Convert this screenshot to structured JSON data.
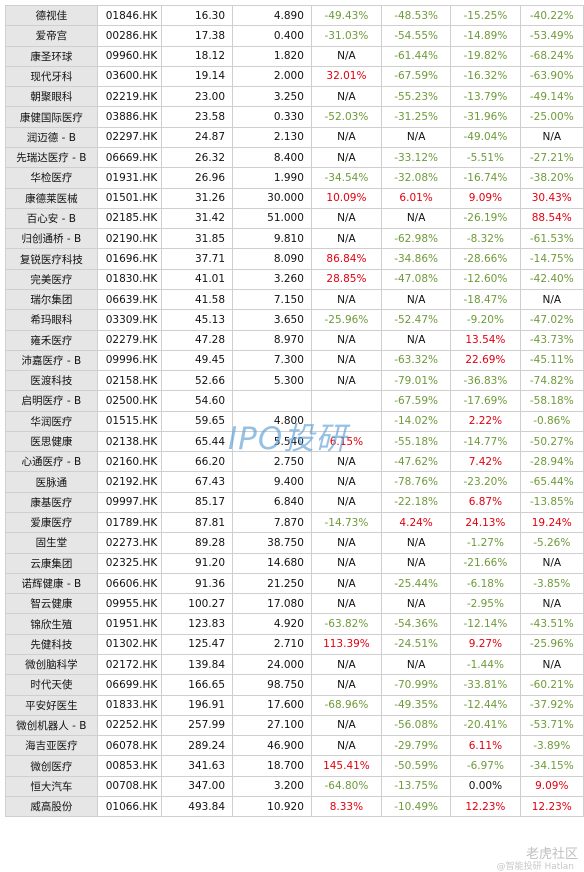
{
  "watermark": {
    "center": "IPO投研",
    "corner": "老虎社区",
    "corner_sub": "@智能投研 Hatlan"
  },
  "rows": [
    {
      "name": "德视佳",
      "code": "01846.HK",
      "price": "16.30",
      "shares": "4.890",
      "p1": "-49.43%",
      "p2": "-48.53%",
      "p3": "-15.25%",
      "p4": "-40.22%"
    },
    {
      "name": "爱帝宫",
      "code": "00286.HK",
      "price": "17.38",
      "shares": "0.400",
      "p1": "-31.03%",
      "p2": "-54.55%",
      "p3": "-14.89%",
      "p4": "-53.49%"
    },
    {
      "name": "康圣环球",
      "code": "09960.HK",
      "price": "18.12",
      "shares": "1.820",
      "p1": "N/A",
      "p2": "-61.44%",
      "p3": "-19.82%",
      "p4": "-68.24%"
    },
    {
      "name": "现代牙科",
      "code": "03600.HK",
      "price": "19.14",
      "shares": "2.000",
      "p1": "32.01%",
      "p2": "-67.59%",
      "p3": "-16.32%",
      "p4": "-63.90%"
    },
    {
      "name": "朝聚眼科",
      "code": "02219.HK",
      "price": "23.00",
      "shares": "3.250",
      "p1": "N/A",
      "p2": "-55.23%",
      "p3": "-13.79%",
      "p4": "-49.14%"
    },
    {
      "name": "康健国际医疗",
      "code": "03886.HK",
      "price": "23.58",
      "shares": "0.330",
      "p1": "-52.03%",
      "p2": "-31.25%",
      "p3": "-31.96%",
      "p4": "-25.00%"
    },
    {
      "name": "润迈德 - B",
      "code": "02297.HK",
      "price": "24.87",
      "shares": "2.130",
      "p1": "N/A",
      "p2": "N/A",
      "p3": "-49.04%",
      "p4": "N/A"
    },
    {
      "name": "先瑞达医疗 - B",
      "code": "06669.HK",
      "price": "26.32",
      "shares": "8.400",
      "p1": "N/A",
      "p2": "-33.12%",
      "p3": "-5.51%",
      "p4": "-27.21%"
    },
    {
      "name": "华检医疗",
      "code": "01931.HK",
      "price": "26.96",
      "shares": "1.990",
      "p1": "-34.54%",
      "p2": "-32.08%",
      "p3": "-16.74%",
      "p4": "-38.20%"
    },
    {
      "name": "康德莱医械",
      "code": "01501.HK",
      "price": "31.26",
      "shares": "30.000",
      "p1": "10.09%",
      "p2": "6.01%",
      "p3": "9.09%",
      "p4": "30.43%"
    },
    {
      "name": "百心安 - B",
      "code": "02185.HK",
      "price": "31.42",
      "shares": "51.000",
      "p1": "N/A",
      "p2": "N/A",
      "p3": "-26.19%",
      "p4": "88.54%"
    },
    {
      "name": "归创通桥 - B",
      "code": "02190.HK",
      "price": "31.85",
      "shares": "9.810",
      "p1": "N/A",
      "p2": "-62.98%",
      "p3": "-8.32%",
      "p4": "-61.53%"
    },
    {
      "name": "复锐医疗科技",
      "code": "01696.HK",
      "price": "37.71",
      "shares": "8.090",
      "p1": "86.84%",
      "p2": "-34.86%",
      "p3": "-28.66%",
      "p4": "-14.75%"
    },
    {
      "name": "完美医疗",
      "code": "01830.HK",
      "price": "41.01",
      "shares": "3.260",
      "p1": "28.85%",
      "p2": "-47.08%",
      "p3": "-12.60%",
      "p4": "-42.40%"
    },
    {
      "name": "瑞尔集团",
      "code": "06639.HK",
      "price": "41.58",
      "shares": "7.150",
      "p1": "N/A",
      "p2": "N/A",
      "p3": "-18.47%",
      "p4": "N/A"
    },
    {
      "name": "希玛眼科",
      "code": "03309.HK",
      "price": "45.13",
      "shares": "3.650",
      "p1": "-25.96%",
      "p2": "-52.47%",
      "p3": "-9.20%",
      "p4": "-47.02%"
    },
    {
      "name": "雍禾医疗",
      "code": "02279.HK",
      "price": "47.28",
      "shares": "8.970",
      "p1": "N/A",
      "p2": "N/A",
      "p3": "13.54%",
      "p4": "-43.73%"
    },
    {
      "name": "沛嘉医疗 - B",
      "code": "09996.HK",
      "price": "49.45",
      "shares": "7.300",
      "p1": "N/A",
      "p2": "-63.32%",
      "p3": "22.69%",
      "p4": "-45.11%"
    },
    {
      "name": "医渡科技",
      "code": "02158.HK",
      "price": "52.66",
      "shares": "5.300",
      "p1": "N/A",
      "p2": "-79.01%",
      "p3": "-36.83%",
      "p4": "-74.82%"
    },
    {
      "name": "启明医疗 - B",
      "code": "02500.HK",
      "price": "54.60",
      "shares": "",
      "p1": "",
      "p2": "-67.59%",
      "p3": "-17.69%",
      "p4": "-58.18%"
    },
    {
      "name": "华润医疗",
      "code": "01515.HK",
      "price": "59.65",
      "shares": "4.800",
      "p1": "",
      "p2": "-14.02%",
      "p3": "2.22%",
      "p4": "-0.86%"
    },
    {
      "name": "医思健康",
      "code": "02138.HK",
      "price": "65.44",
      "shares": "5.540",
      "p1": "6.15%",
      "p2": "-55.18%",
      "p3": "-14.77%",
      "p4": "-50.27%"
    },
    {
      "name": "心通医疗 - B",
      "code": "02160.HK",
      "price": "66.20",
      "shares": "2.750",
      "p1": "N/A",
      "p2": "-47.62%",
      "p3": "7.42%",
      "p4": "-28.94%"
    },
    {
      "name": "医脉通",
      "code": "02192.HK",
      "price": "67.43",
      "shares": "9.400",
      "p1": "N/A",
      "p2": "-78.76%",
      "p3": "-23.20%",
      "p4": "-65.44%"
    },
    {
      "name": "康基医疗",
      "code": "09997.HK",
      "price": "85.17",
      "shares": "6.840",
      "p1": "N/A",
      "p2": "-22.18%",
      "p3": "6.87%",
      "p4": "-13.85%"
    },
    {
      "name": "爱康医疗",
      "code": "01789.HK",
      "price": "87.81",
      "shares": "7.870",
      "p1": "-14.73%",
      "p2": "4.24%",
      "p3": "24.13%",
      "p4": "19.24%"
    },
    {
      "name": "固生堂",
      "code": "02273.HK",
      "price": "89.28",
      "shares": "38.750",
      "p1": "N/A",
      "p2": "N/A",
      "p3": "-1.27%",
      "p4": "-5.26%"
    },
    {
      "name": "云康集团",
      "code": "02325.HK",
      "price": "91.20",
      "shares": "14.680",
      "p1": "N/A",
      "p2": "N/A",
      "p3": "-21.66%",
      "p4": "N/A"
    },
    {
      "name": "诺辉健康 - B",
      "code": "06606.HK",
      "price": "91.36",
      "shares": "21.250",
      "p1": "N/A",
      "p2": "-25.44%",
      "p3": "-6.18%",
      "p4": "-3.85%"
    },
    {
      "name": "智云健康",
      "code": "09955.HK",
      "price": "100.27",
      "shares": "17.080",
      "p1": "N/A",
      "p2": "N/A",
      "p3": "-2.95%",
      "p4": "N/A"
    },
    {
      "name": "锦欣生殖",
      "code": "01951.HK",
      "price": "123.83",
      "shares": "4.920",
      "p1": "-63.82%",
      "p2": "-54.36%",
      "p3": "-12.14%",
      "p4": "-43.51%"
    },
    {
      "name": "先健科技",
      "code": "01302.HK",
      "price": "125.47",
      "shares": "2.710",
      "p1": "113.39%",
      "p2": "-24.51%",
      "p3": "9.27%",
      "p4": "-25.96%"
    },
    {
      "name": "微创脑科学",
      "code": "02172.HK",
      "price": "139.84",
      "shares": "24.000",
      "p1": "N/A",
      "p2": "N/A",
      "p3": "-1.44%",
      "p4": "N/A"
    },
    {
      "name": "时代天使",
      "code": "06699.HK",
      "price": "166.65",
      "shares": "98.750",
      "p1": "N/A",
      "p2": "-70.99%",
      "p3": "-33.81%",
      "p4": "-60.21%"
    },
    {
      "name": "平安好医生",
      "code": "01833.HK",
      "price": "196.91",
      "shares": "17.600",
      "p1": "-68.96%",
      "p2": "-49.35%",
      "p3": "-12.44%",
      "p4": "-37.92%"
    },
    {
      "name": "微创机器人 - B",
      "code": "02252.HK",
      "price": "257.99",
      "shares": "27.100",
      "p1": "N/A",
      "p2": "-56.08%",
      "p3": "-20.41%",
      "p4": "-53.71%"
    },
    {
      "name": "海吉亚医疗",
      "code": "06078.HK",
      "price": "289.24",
      "shares": "46.900",
      "p1": "N/A",
      "p2": "-29.79%",
      "p3": "6.11%",
      "p4": "-3.89%"
    },
    {
      "name": "微创医疗",
      "code": "00853.HK",
      "price": "341.63",
      "shares": "18.700",
      "p1": "145.41%",
      "p2": "-50.59%",
      "p3": "-6.97%",
      "p4": "-34.15%"
    },
    {
      "name": "恒大汽车",
      "code": "00708.HK",
      "price": "347.00",
      "shares": "3.200",
      "p1": "-64.80%",
      "p2": "-13.75%",
      "p3": "0.00%",
      "p4": "9.09%"
    },
    {
      "name": "威高股份",
      "code": "01066.HK",
      "price": "493.84",
      "shares": "10.920",
      "p1": "8.33%",
      "p2": "-10.49%",
      "p3": "12.23%",
      "p4": "12.23%"
    }
  ]
}
